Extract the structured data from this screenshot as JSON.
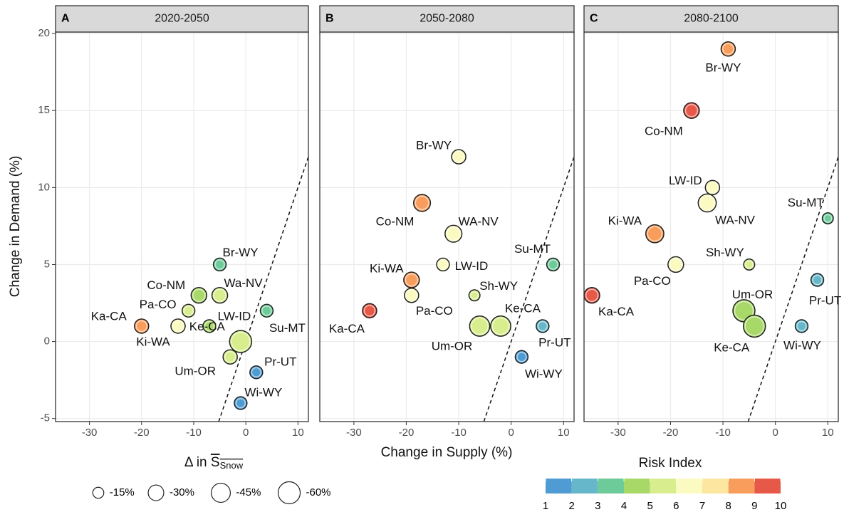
{
  "chart_data": {
    "type": "scatter",
    "ylabel": "Change in Demand (%)",
    "xlabel": "Change in Supply (%)",
    "xlabel_snow": {
      "prefix": "Δ in",
      "symbol": "S",
      "subscript": "Snow"
    },
    "xlim": [
      -36.5,
      12
    ],
    "ylim": [
      -5.2,
      20.1
    ],
    "xticks": [
      -30,
      -20,
      -10,
      0,
      10
    ],
    "yticks": [
      -5,
      0,
      5,
      10,
      15,
      20
    ],
    "grid": true,
    "panels": [
      {
        "tag": "A",
        "title": "2020-2050",
        "points": [
          {
            "label": "Br-WY",
            "x": -5,
            "y": 5,
            "size": -20,
            "risk": 3.5
          },
          {
            "label": "Co-NM",
            "x": -9,
            "y": 3,
            "size": -30,
            "risk": 4
          },
          {
            "label": "Wa-NV",
            "x": -5,
            "y": 3,
            "size": -30,
            "risk": 5
          },
          {
            "label": "Pa-CO",
            "x": -11,
            "y": 2,
            "size": -20,
            "risk": 5
          },
          {
            "label": "Su-MT",
            "x": 4,
            "y": 2,
            "size": -20,
            "risk": 3.5
          },
          {
            "label": "Ka-CA",
            "x": -20,
            "y": 1,
            "size": -25,
            "risk": 8.5
          },
          {
            "label": "Ki-WA",
            "x": -13,
            "y": 1,
            "size": -25,
            "risk": 6
          },
          {
            "label": "LW-ID",
            "x": -7,
            "y": 1,
            "size": -20,
            "risk": 4
          },
          {
            "label": "Ke-CA",
            "x": -1,
            "y": 0,
            "size": -60,
            "risk": 5
          },
          {
            "label": "Um-OR",
            "x": -3,
            "y": -1,
            "size": -25,
            "risk": 5
          },
          {
            "label": "Pr-UT",
            "x": 2,
            "y": -2,
            "size": -20,
            "risk": 1.5
          },
          {
            "label": "Wi-WY",
            "x": -1,
            "y": -4,
            "size": -20,
            "risk": 1.5
          }
        ]
      },
      {
        "tag": "B",
        "title": "2050-2080",
        "points": [
          {
            "label": "Br-WY",
            "x": -10,
            "y": 12,
            "size": -25,
            "risk": 6
          },
          {
            "label": "Co-NM",
            "x": -17,
            "y": 9,
            "size": -35,
            "risk": 8.5
          },
          {
            "label": "WA-NV",
            "x": -11,
            "y": 7,
            "size": -35,
            "risk": 6.5
          },
          {
            "label": "Su-MT",
            "x": 8,
            "y": 5,
            "size": -20,
            "risk": 3
          },
          {
            "label": "Ki-WA",
            "x": -19,
            "y": 4,
            "size": -30,
            "risk": 8
          },
          {
            "label": "LW-ID",
            "x": -13,
            "y": 5,
            "size": -20,
            "risk": 6
          },
          {
            "label": "Pa-CO",
            "x": -19,
            "y": 3,
            "size": -25,
            "risk": 6.5
          },
          {
            "label": "Sh-WY",
            "x": -7,
            "y": 3,
            "size": -15,
            "risk": 5
          },
          {
            "label": "Ka-CA",
            "x": -27,
            "y": 2,
            "size": -25,
            "risk": 9.5
          },
          {
            "label": "Um-OR",
            "x": -6,
            "y": 1,
            "size": -50,
            "risk": 5
          },
          {
            "label": "Ke-CA",
            "x": -2,
            "y": 1,
            "size": -50,
            "risk": 5
          },
          {
            "label": "Pr-UT",
            "x": 6,
            "y": 1,
            "size": -20,
            "risk": 2
          },
          {
            "label": "Wi-WY",
            "x": 2,
            "y": -1,
            "size": -20,
            "risk": 1.5
          }
        ]
      },
      {
        "tag": "C",
        "title": "2080-2100",
        "points": [
          {
            "label": "Br-WY",
            "x": -9,
            "y": 19,
            "size": -25,
            "risk": 8
          },
          {
            "label": "Co-NM",
            "x": -16,
            "y": 15,
            "size": -30,
            "risk": 9.5
          },
          {
            "label": "LW-ID",
            "x": -12,
            "y": 10,
            "size": -25,
            "risk": 6
          },
          {
            "label": "WA-NV",
            "x": -13,
            "y": 9,
            "size": -40,
            "risk": 6.5
          },
          {
            "label": "Su-MT",
            "x": 10,
            "y": 8,
            "size": -15,
            "risk": 3.5
          },
          {
            "label": "Ki-WA",
            "x": -23,
            "y": 7,
            "size": -40,
            "risk": 8
          },
          {
            "label": "Sh-WY",
            "x": -5,
            "y": 5,
            "size": -15,
            "risk": 5
          },
          {
            "label": "Pa-CO",
            "x": -19,
            "y": 5,
            "size": -30,
            "risk": 6.5
          },
          {
            "label": "Pr-UT",
            "x": 8,
            "y": 4,
            "size": -20,
            "risk": 2
          },
          {
            "label": "Ka-CA",
            "x": -35,
            "y": 3,
            "size": -30,
            "risk": 10
          },
          {
            "label": "Um-OR",
            "x": -6,
            "y": 2,
            "size": -60,
            "risk": 4.5
          },
          {
            "label": "Ke-CA",
            "x": -4,
            "y": 1,
            "size": -60,
            "risk": 4.5
          },
          {
            "label": "Wi-WY",
            "x": 5,
            "y": 1,
            "size": -20,
            "risk": 2.5
          }
        ]
      }
    ],
    "size_legend": {
      "values": [
        {
          "value": -15,
          "label": "-15%"
        },
        {
          "value": -30,
          "label": "-30%"
        },
        {
          "value": -45,
          "label": "-45%"
        },
        {
          "value": -60,
          "label": "-60%"
        }
      ]
    },
    "color_legend": {
      "title": "Risk Index",
      "ticks": [
        1,
        2,
        3,
        4,
        5,
        6,
        7,
        8,
        9,
        10
      ],
      "colors": [
        "#4f9bd3",
        "#66b7c9",
        "#6ccb98",
        "#a8d868",
        "#d8ee8e",
        "#fbfac0",
        "#fde7a0",
        "#f89d5c",
        "#e65948"
      ]
    }
  }
}
